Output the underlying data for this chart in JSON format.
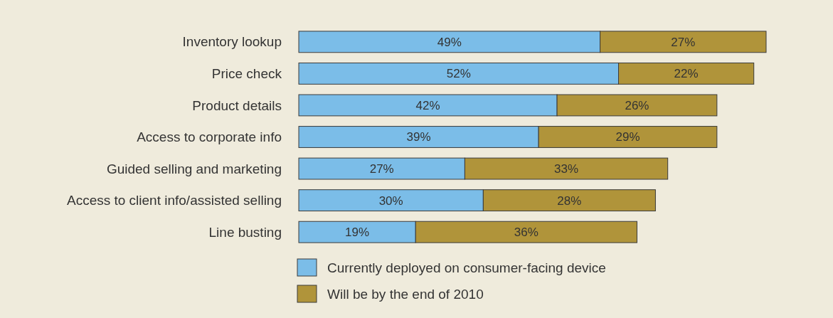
{
  "chart_data": {
    "type": "bar",
    "orientation": "horizontal",
    "stacked": true,
    "legend": "bottom",
    "categories": [
      "Inventory lookup",
      "Price check",
      "Product details",
      "Access to corporate info",
      "Guided selling and marketing",
      "Access to client info/assisted selling",
      "Line busting"
    ],
    "series": [
      {
        "name": "Currently deployed on consumer-facing device",
        "color": "#7bbde8",
        "values": [
          49,
          52,
          42,
          39,
          27,
          30,
          19
        ],
        "value_labels": [
          "49%",
          "52%",
          "42%",
          "39%",
          "27%",
          "30%",
          "19%"
        ]
      },
      {
        "name": "Will be by the end of 2010",
        "color": "#b0943a",
        "values": [
          27,
          22,
          26,
          29,
          33,
          28,
          36
        ],
        "value_labels": [
          "27%",
          "22%",
          "26%",
          "29%",
          "33%",
          "28%",
          "36%"
        ]
      }
    ]
  }
}
